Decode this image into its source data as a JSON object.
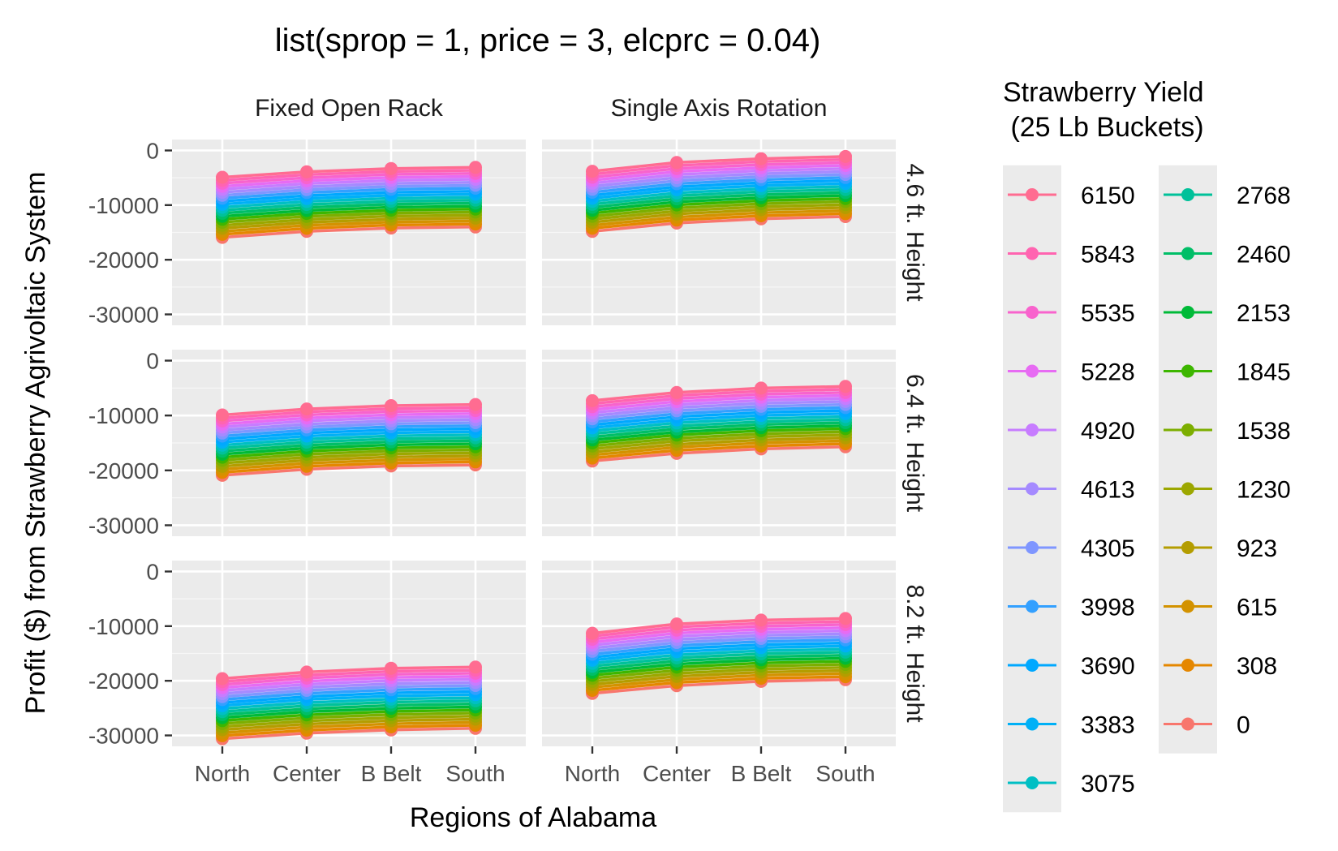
{
  "chart_data": {
    "type": "line",
    "title": "list(sprop = 1, price = 3, elcprc = 0.04)",
    "xlabel": "Regions of Alabama",
    "ylabel": "Profit ($) from Strawberry Agrivoltaic System",
    "categories": [
      "North",
      "Center",
      "B Belt",
      "South"
    ],
    "ylim": [
      -32000,
      2000
    ],
    "yticks": [
      0,
      -10000,
      -20000,
      -30000
    ],
    "ytick_labels": [
      "0",
      "-10000",
      "-20000",
      "-30000"
    ],
    "grid": true,
    "legend": {
      "title_line1": "Strawberry Yield",
      "title_line2": " (25 Lb Buckets)",
      "placement": "right",
      "entries": [
        "6150",
        "5843",
        "5535",
        "5228",
        "4920",
        "4613",
        "4305",
        "3998",
        "3690",
        "3383",
        "3075",
        "2768",
        "2460",
        "2153",
        "1845",
        "1538",
        "1230",
        "923",
        "615",
        "308",
        "0"
      ]
    },
    "colors": [
      "#FF6C91",
      "#FF64B0",
      "#F863CD",
      "#E76BF3",
      "#C77CFF",
      "#A58AFF",
      "#7F96FF",
      "#33A0FF",
      "#00A8FF",
      "#00B0F6",
      "#00BFC4",
      "#00C19A",
      "#00BE67",
      "#00BA38",
      "#3DB600",
      "#7CAE00",
      "#9CA700",
      "#B49D00",
      "#D39200",
      "#E58700",
      "#F8766D"
    ],
    "col_facets": [
      "Fixed Open Rack",
      "Single Axis Rotation"
    ],
    "row_facets": [
      "4.6 ft. Height",
      "6.4 ft. Height",
      "8.2 ft. Height"
    ],
    "panels": [
      {
        "col": 0,
        "row": 0,
        "top": [
          -4900,
          -3900,
          -3300,
          -3100
        ],
        "bottom": [
          -15900,
          -14800,
          -14200,
          -14000
        ]
      },
      {
        "col": 1,
        "row": 0,
        "top": [
          -3800,
          -2200,
          -1500,
          -1100
        ],
        "bottom": [
          -14800,
          -13300,
          -12500,
          -12100
        ]
      },
      {
        "col": 0,
        "row": 1,
        "top": [
          -9900,
          -8800,
          -8200,
          -8000
        ],
        "bottom": [
          -20900,
          -19800,
          -19200,
          -19000
        ]
      },
      {
        "col": 1,
        "row": 1,
        "top": [
          -7300,
          -5800,
          -5000,
          -4700
        ],
        "bottom": [
          -18300,
          -16900,
          -16100,
          -15700
        ]
      },
      {
        "col": 0,
        "row": 2,
        "top": [
          -19600,
          -18400,
          -17700,
          -17500
        ],
        "bottom": [
          -30600,
          -29600,
          -29000,
          -28700
        ]
      },
      {
        "col": 1,
        "row": 2,
        "top": [
          -11300,
          -9600,
          -8900,
          -8600
        ],
        "bottom": [
          -22300,
          -20900,
          -20100,
          -19800
        ]
      }
    ]
  }
}
